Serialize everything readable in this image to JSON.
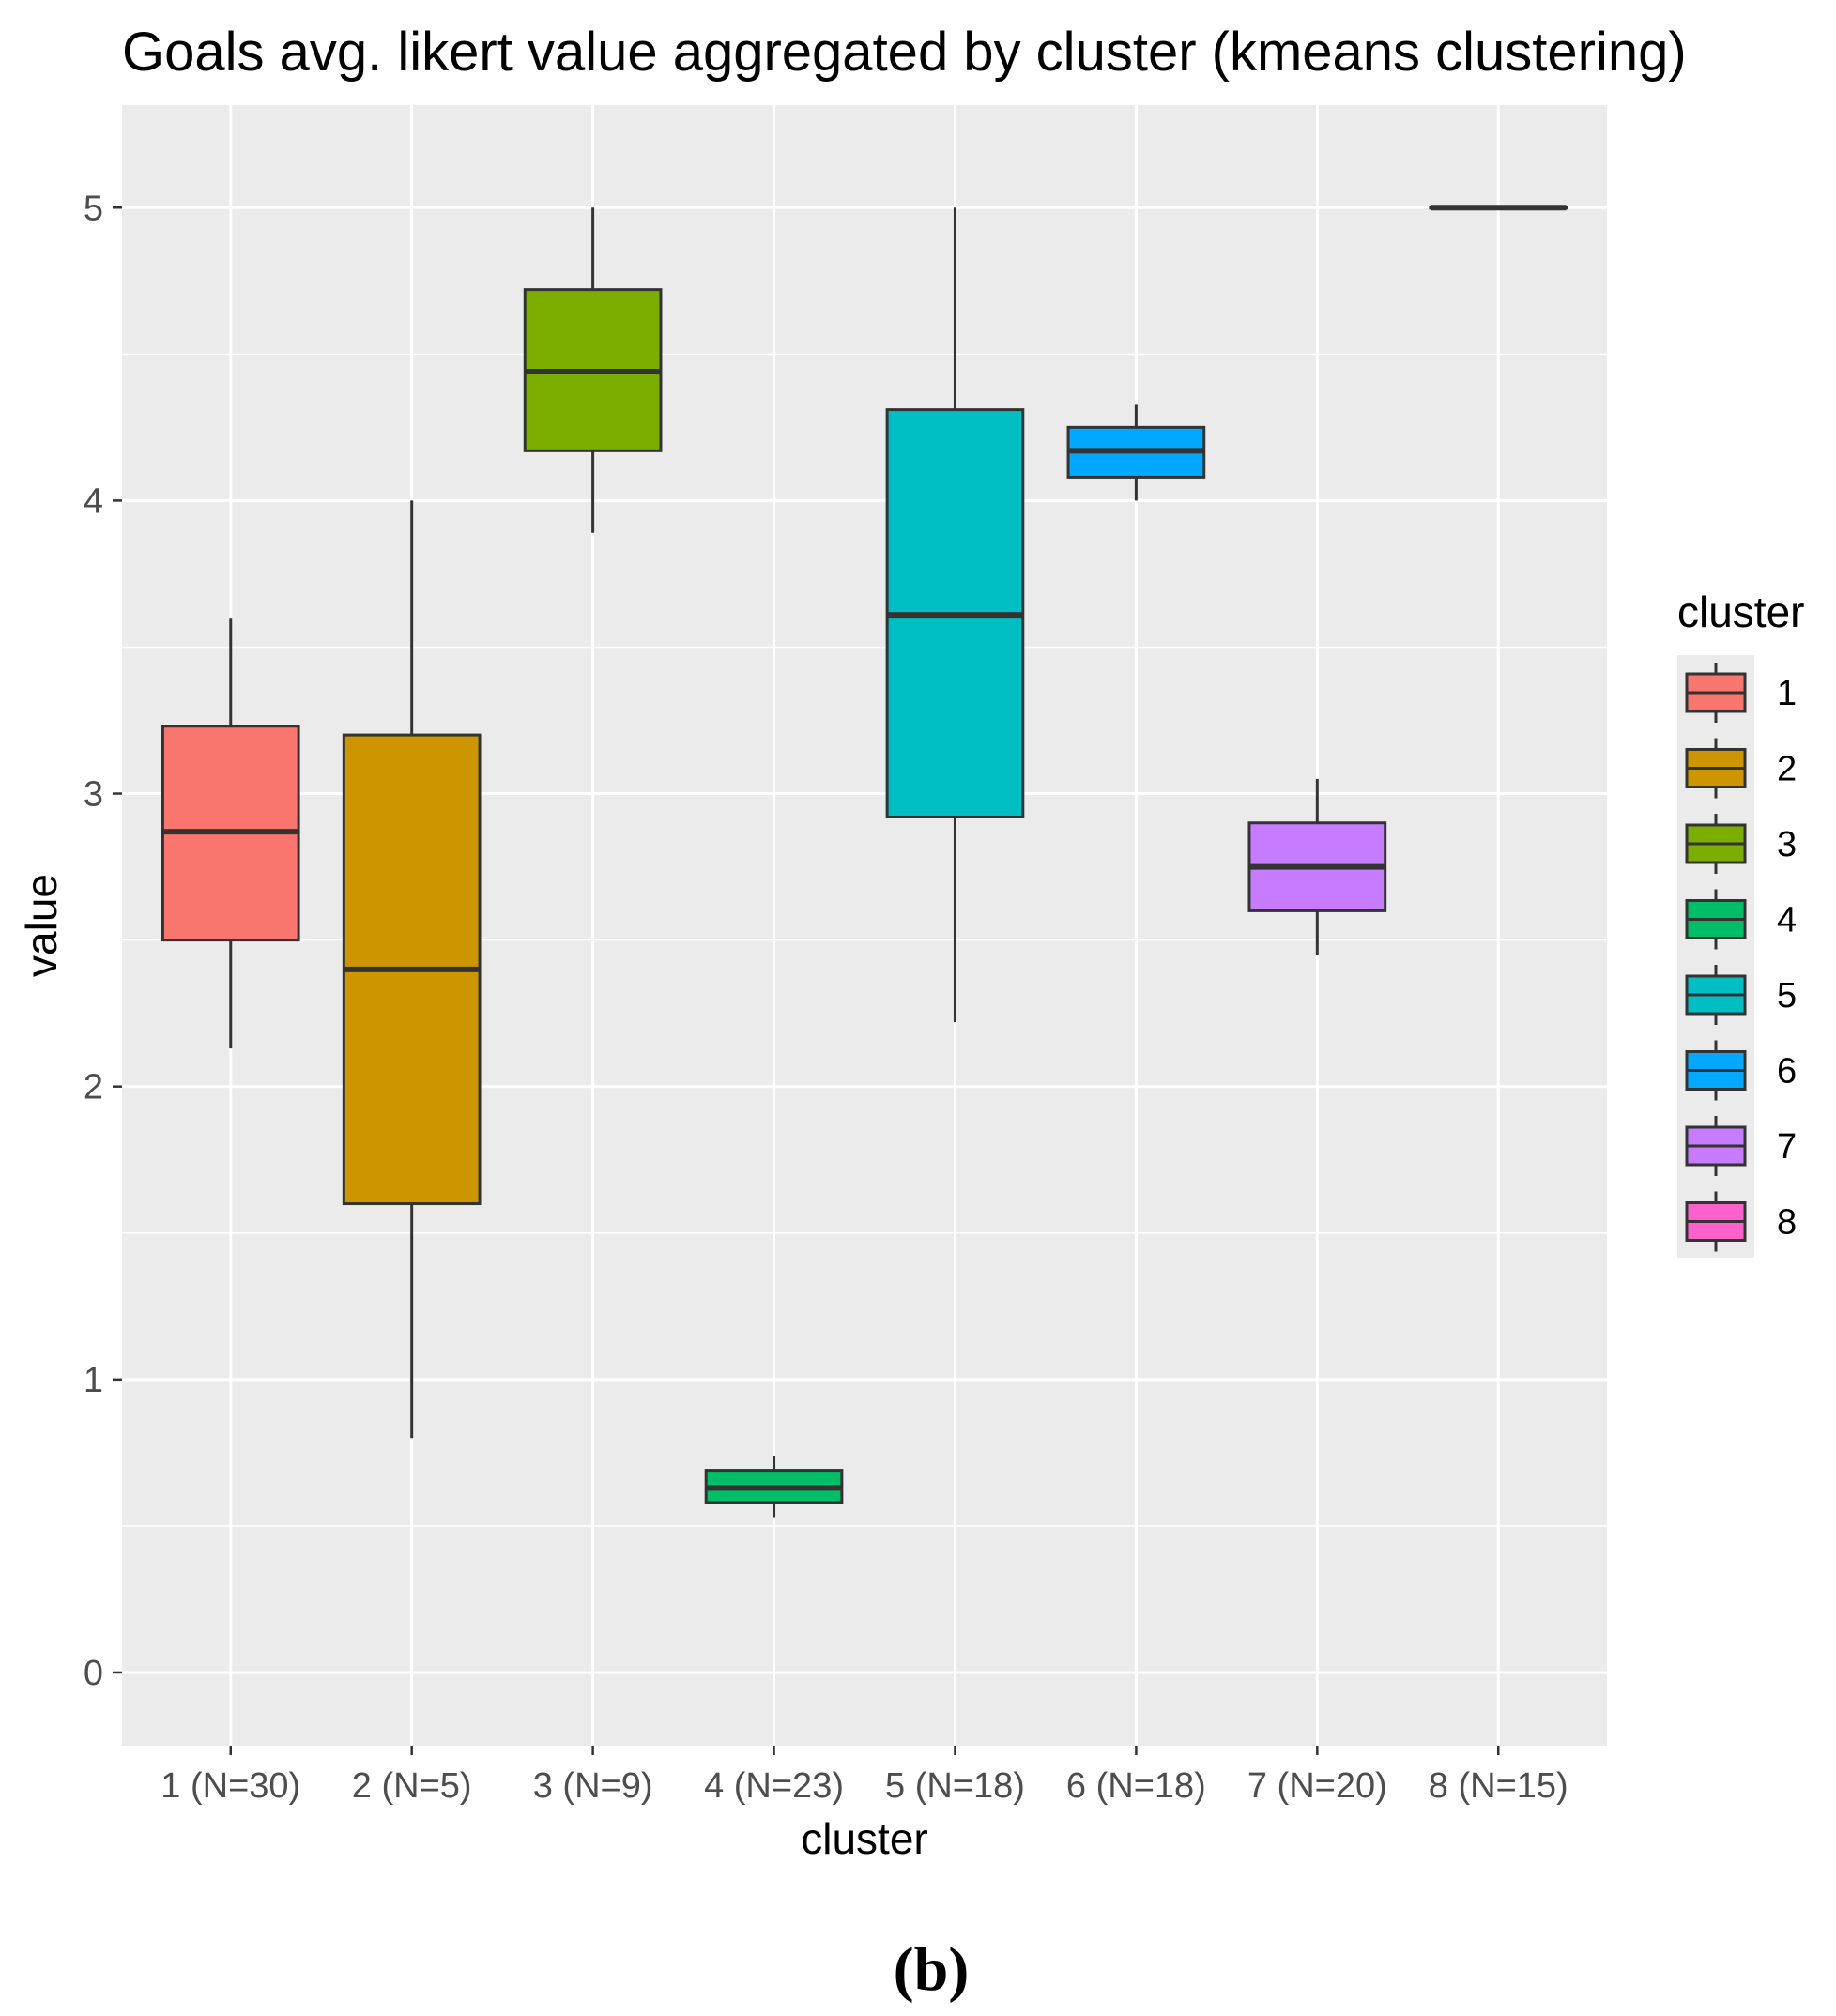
{
  "chart_data": {
    "type": "boxplot",
    "title": "Goals avg. likert value aggregated by cluster (kmeans clustering)",
    "xlabel": "cluster",
    "ylabel": "value",
    "ylim": [
      -0.25,
      5.35
    ],
    "yticks": [
      0,
      1,
      2,
      3,
      4,
      5
    ],
    "grid": true,
    "categories": [
      "1 (N=30)",
      "2 (N=5)",
      "3 (N=9)",
      "4 (N=23)",
      "5 (N=18)",
      "6 (N=18)",
      "7 (N=20)",
      "8 (N=15)"
    ],
    "boxes": [
      {
        "cluster": "1",
        "min": 2.13,
        "q1": 2.5,
        "median": 2.87,
        "q3": 3.23,
        "max": 3.6,
        "color": "#F8766D"
      },
      {
        "cluster": "2",
        "min": 0.8,
        "q1": 1.6,
        "median": 2.4,
        "q3": 3.2,
        "max": 4.0,
        "color": "#CD9600"
      },
      {
        "cluster": "3",
        "min": 3.89,
        "q1": 4.17,
        "median": 4.44,
        "q3": 4.72,
        "max": 5.0,
        "color": "#7CAE00"
      },
      {
        "cluster": "4",
        "min": 0.53,
        "q1": 0.58,
        "median": 0.63,
        "q3": 0.69,
        "max": 0.74,
        "color": "#00BE67"
      },
      {
        "cluster": "5",
        "min": 2.22,
        "q1": 2.92,
        "median": 3.61,
        "q3": 4.31,
        "max": 5.0,
        "color": "#00BFC4"
      },
      {
        "cluster": "6",
        "min": 4.0,
        "q1": 4.08,
        "median": 4.17,
        "q3": 4.25,
        "max": 4.33,
        "color": "#00A9FF"
      },
      {
        "cluster": "7",
        "min": 2.45,
        "q1": 2.6,
        "median": 2.75,
        "q3": 2.9,
        "max": 3.05,
        "color": "#C77CFF"
      },
      {
        "cluster": "8",
        "min": 5.0,
        "q1": 5.0,
        "median": 5.0,
        "q3": 5.0,
        "max": 5.0,
        "color": "#FF61CC"
      }
    ],
    "legend": {
      "title": "cluster",
      "position": "right",
      "entries": [
        "1",
        "2",
        "3",
        "4",
        "5",
        "6",
        "7",
        "8"
      ]
    }
  },
  "caption": "(b)"
}
